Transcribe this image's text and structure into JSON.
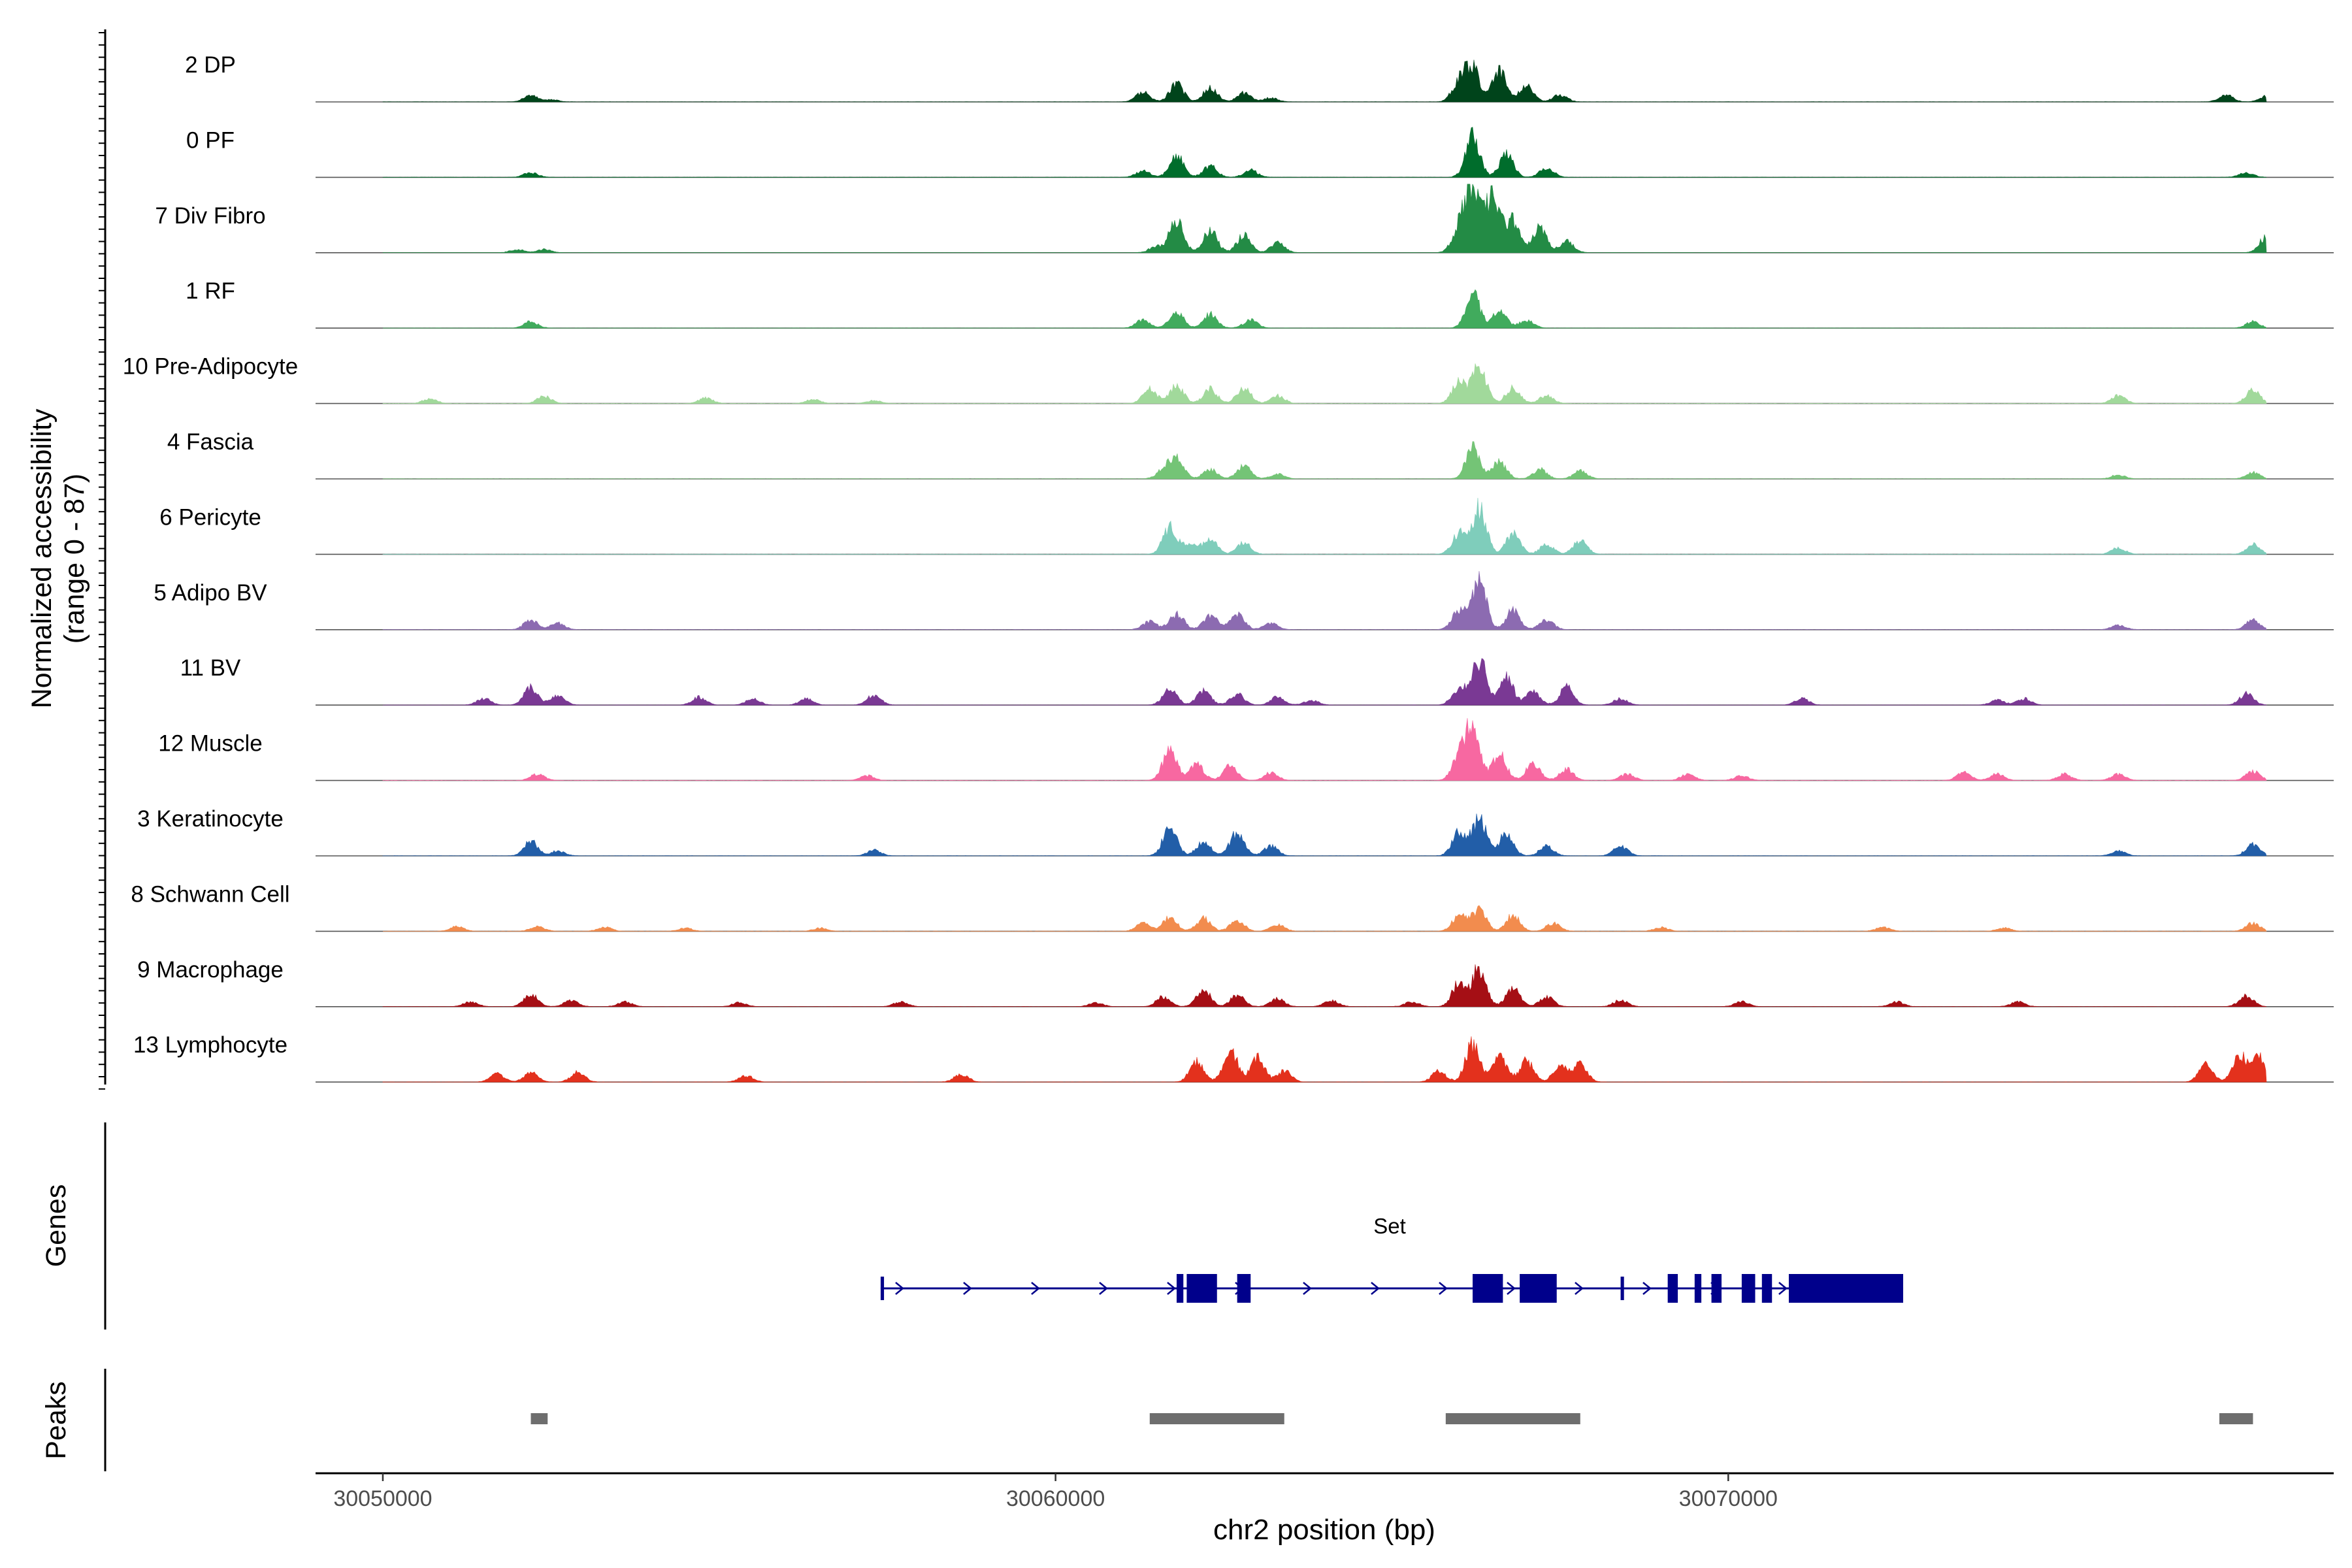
{
  "chart_data": {
    "type": "area",
    "title": "",
    "ylabel_line1": "Normalized accessibility",
    "ylabel_line2": "(range 0 - 87)",
    "xlabel": "chr2 position (bp)",
    "xlim": [
      30049000,
      30079000
    ],
    "ylim": [
      0,
      87
    ],
    "region": [
      30050000,
      30078000
    ],
    "xticks": [
      30050000,
      30060000,
      30070000
    ],
    "xtick_labels": [
      "30050000",
      "30060000",
      "30070000"
    ],
    "tracks": [
      {
        "name": "2 DP",
        "color": "#00441b",
        "peaks": [
          [
            30052200,
            8
          ],
          [
            30052500,
            3
          ],
          [
            30061300,
            12
          ],
          [
            30061800,
            22
          ],
          [
            30062300,
            18
          ],
          [
            30062800,
            11
          ],
          [
            30063200,
            5
          ],
          [
            30066000,
            25
          ],
          [
            30066200,
            44
          ],
          [
            30066600,
            38
          ],
          [
            30067000,
            20
          ],
          [
            30067500,
            9
          ],
          [
            30077400,
            9
          ],
          [
            30078000,
            7
          ]
        ]
      },
      {
        "name": "0 PF",
        "color": "#006d2c",
        "peaks": [
          [
            30052200,
            6
          ],
          [
            30061300,
            8
          ],
          [
            30061800,
            28
          ],
          [
            30062300,
            14
          ],
          [
            30062900,
            9
          ],
          [
            30066200,
            52
          ],
          [
            30066700,
            28
          ],
          [
            30067300,
            12
          ],
          [
            30077700,
            6
          ]
        ]
      },
      {
        "name": "7 Div Fibro",
        "color": "#238b45",
        "peaks": [
          [
            30052000,
            4
          ],
          [
            30052400,
            4
          ],
          [
            30061500,
            8
          ],
          [
            30061800,
            42
          ],
          [
            30062300,
            28
          ],
          [
            30062800,
            22
          ],
          [
            30063300,
            12
          ],
          [
            30066000,
            30
          ],
          [
            30066200,
            87
          ],
          [
            30066500,
            72
          ],
          [
            30066800,
            40
          ],
          [
            30067200,
            32
          ],
          [
            30067600,
            14
          ],
          [
            30078000,
            20
          ]
        ]
      },
      {
        "name": "1 RF",
        "color": "#41ab5d",
        "peaks": [
          [
            30052200,
            8
          ],
          [
            30061300,
            10
          ],
          [
            30061800,
            20
          ],
          [
            30062300,
            17
          ],
          [
            30062900,
            10
          ],
          [
            30066200,
            44
          ],
          [
            30066600,
            22
          ],
          [
            30067000,
            10
          ],
          [
            30077800,
            8
          ]
        ]
      },
      {
        "name": "10 Pre-Adipocyte",
        "color": "#a1d99b",
        "peaks": [
          [
            30050700,
            6
          ],
          [
            30052400,
            9
          ],
          [
            30054800,
            7
          ],
          [
            30056400,
            5
          ],
          [
            30057300,
            4
          ],
          [
            30061400,
            18
          ],
          [
            30061800,
            22
          ],
          [
            30062300,
            18
          ],
          [
            30062800,
            20
          ],
          [
            30063300,
            10
          ],
          [
            30066000,
            28
          ],
          [
            30066300,
            46
          ],
          [
            30066800,
            20
          ],
          [
            30067300,
            10
          ],
          [
            30075800,
            10
          ],
          [
            30077800,
            17
          ]
        ]
      },
      {
        "name": "4 Fascia",
        "color": "#74c476",
        "peaks": [
          [
            30061600,
            10
          ],
          [
            30061800,
            28
          ],
          [
            30062300,
            12
          ],
          [
            30062800,
            16
          ],
          [
            30063300,
            6
          ],
          [
            30066200,
            38
          ],
          [
            30066600,
            22
          ],
          [
            30067200,
            12
          ],
          [
            30067800,
            10
          ],
          [
            30075800,
            5
          ],
          [
            30077800,
            8
          ]
        ]
      },
      {
        "name": "6 Pericyte",
        "color": "#7fcdbb",
        "peaks": [
          [
            30061700,
            34
          ],
          [
            30062000,
            12
          ],
          [
            30062300,
            20
          ],
          [
            30062800,
            14
          ],
          [
            30066000,
            28
          ],
          [
            30066300,
            58
          ],
          [
            30066800,
            26
          ],
          [
            30067300,
            12
          ],
          [
            30067800,
            17
          ],
          [
            30075800,
            8
          ],
          [
            30077800,
            12
          ]
        ]
      },
      {
        "name": "5 Adipo BV",
        "color": "#8c6bb1",
        "peaks": [
          [
            30052200,
            12
          ],
          [
            30052600,
            8
          ],
          [
            30061400,
            10
          ],
          [
            30061800,
            20
          ],
          [
            30062300,
            18
          ],
          [
            30062700,
            20
          ],
          [
            30063200,
            8
          ],
          [
            30066000,
            24
          ],
          [
            30066300,
            62
          ],
          [
            30066800,
            24
          ],
          [
            30067300,
            12
          ],
          [
            30075800,
            6
          ],
          [
            30077800,
            12
          ]
        ]
      },
      {
        "name": "11 BV",
        "color": "#7a3994",
        "peaks": [
          [
            30051500,
            8
          ],
          [
            30052200,
            22
          ],
          [
            30052600,
            12
          ],
          [
            30054700,
            10
          ],
          [
            30055500,
            8
          ],
          [
            30056300,
            8
          ],
          [
            30057300,
            12
          ],
          [
            30061700,
            20
          ],
          [
            30062200,
            18
          ],
          [
            30062700,
            14
          ],
          [
            30063300,
            10
          ],
          [
            30063800,
            6
          ],
          [
            30066000,
            22
          ],
          [
            30066300,
            58
          ],
          [
            30066700,
            35
          ],
          [
            30067100,
            18
          ],
          [
            30067600,
            22
          ],
          [
            30068400,
            8
          ],
          [
            30071100,
            8
          ],
          [
            30074000,
            6
          ],
          [
            30074400,
            8
          ],
          [
            30077700,
            14
          ]
        ]
      },
      {
        "name": "12 Muscle",
        "color": "#f768a1",
        "peaks": [
          [
            30052300,
            8
          ],
          [
            30057200,
            6
          ],
          [
            30061700,
            38
          ],
          [
            30062100,
            20
          ],
          [
            30062600,
            18
          ],
          [
            30063200,
            10
          ],
          [
            30066000,
            30
          ],
          [
            30066200,
            68
          ],
          [
            30066600,
            32
          ],
          [
            30067100,
            22
          ],
          [
            30067600,
            14
          ],
          [
            30068500,
            8
          ],
          [
            30069400,
            8
          ],
          [
            30070200,
            6
          ],
          [
            30073500,
            10
          ],
          [
            30074000,
            8
          ],
          [
            30075000,
            8
          ],
          [
            30075800,
            8
          ],
          [
            30077800,
            12
          ]
        ]
      },
      {
        "name": "3 Keratinocyte",
        "color": "#225ea8",
        "peaks": [
          [
            30052200,
            18
          ],
          [
            30052600,
            6
          ],
          [
            30057300,
            7
          ],
          [
            30061700,
            36
          ],
          [
            30062200,
            18
          ],
          [
            30062700,
            30
          ],
          [
            30063200,
            12
          ],
          [
            30066000,
            30
          ],
          [
            30066300,
            48
          ],
          [
            30066700,
            28
          ],
          [
            30067300,
            12
          ],
          [
            30068400,
            12
          ],
          [
            30075800,
            6
          ],
          [
            30077800,
            14
          ]
        ]
      },
      {
        "name": "8 Schwann Cell",
        "color": "#f28c4e",
        "peaks": [
          [
            30051100,
            6
          ],
          [
            30052300,
            6
          ],
          [
            30053300,
            5
          ],
          [
            30054500,
            4
          ],
          [
            30056500,
            4
          ],
          [
            30061300,
            10
          ],
          [
            30061700,
            18
          ],
          [
            30062200,
            16
          ],
          [
            30062700,
            14
          ],
          [
            30063300,
            8
          ],
          [
            30066000,
            20
          ],
          [
            30066300,
            28
          ],
          [
            30066800,
            20
          ],
          [
            30067400,
            10
          ],
          [
            30069000,
            5
          ],
          [
            30072300,
            5
          ],
          [
            30074100,
            4
          ],
          [
            30077800,
            10
          ]
        ]
      },
      {
        "name": "9 Macrophage",
        "color": "#a50f15",
        "peaks": [
          [
            30051300,
            6
          ],
          [
            30052200,
            16
          ],
          [
            30052800,
            8
          ],
          [
            30053600,
            6
          ],
          [
            30055300,
            5
          ],
          [
            30057700,
            6
          ],
          [
            30060600,
            5
          ],
          [
            30061600,
            12
          ],
          [
            30062200,
            22
          ],
          [
            30062700,
            14
          ],
          [
            30063300,
            10
          ],
          [
            30064100,
            8
          ],
          [
            30065300,
            6
          ],
          [
            30066000,
            30
          ],
          [
            30066300,
            48
          ],
          [
            30066800,
            22
          ],
          [
            30067300,
            12
          ],
          [
            30068400,
            8
          ],
          [
            30070200,
            6
          ],
          [
            30072500,
            6
          ],
          [
            30074300,
            6
          ],
          [
            30077700,
            14
          ]
        ]
      },
      {
        "name": "13 Lymphocyte",
        "color": "#e3311d",
        "peaks": [
          [
            30051700,
            10
          ],
          [
            30052200,
            12
          ],
          [
            30052900,
            12
          ],
          [
            30055400,
            8
          ],
          [
            30058600,
            10
          ],
          [
            30062100,
            26
          ],
          [
            30062600,
            40
          ],
          [
            30063000,
            30
          ],
          [
            30063400,
            14
          ],
          [
            30065700,
            14
          ],
          [
            30066200,
            48
          ],
          [
            30066600,
            32
          ],
          [
            30067000,
            26
          ],
          [
            30067500,
            20
          ],
          [
            30067800,
            22
          ],
          [
            30077100,
            22
          ],
          [
            30077600,
            36
          ],
          [
            30077900,
            30
          ]
        ]
      }
    ],
    "genes_label": "Genes",
    "gene": {
      "name": "Set",
      "start": 30057400,
      "end": 30072600,
      "strand": "+",
      "exons": [
        [
          30057400,
          30057450
        ],
        [
          30061800,
          30061900
        ],
        [
          30061950,
          30062400
        ],
        [
          30062700,
          30062900
        ],
        [
          30066200,
          30066650
        ],
        [
          30066900,
          30067450
        ],
        [
          30068400,
          30068450
        ],
        [
          30069100,
          30069250
        ],
        [
          30069500,
          30069600
        ],
        [
          30069750,
          30069900
        ],
        [
          30070200,
          30070400
        ],
        [
          30070500,
          30070650
        ],
        [
          30070900,
          30072600
        ]
      ]
    },
    "peaks_label": "Peaks",
    "peak_regions": [
      [
        30052200,
        30052450
      ],
      [
        30061400,
        30063400
      ],
      [
        30065800,
        30067800
      ],
      [
        30077300,
        30077800
      ]
    ]
  }
}
